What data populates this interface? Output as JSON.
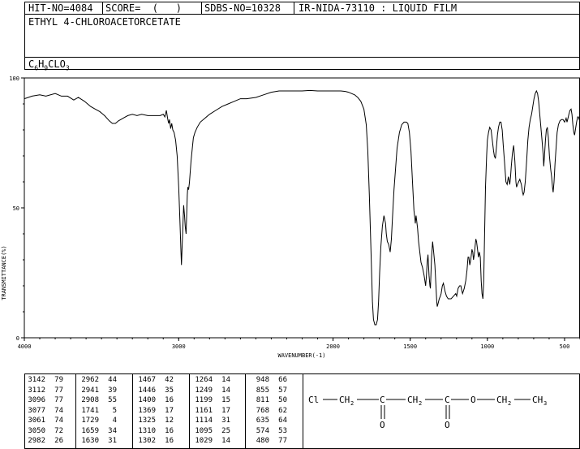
{
  "header": {
    "hit_no": "HIT-NO=4084",
    "score": "SCORE=  (   )",
    "sdbs_no": "SDBS-NO=10328",
    "ir_nida": "IR-NIDA-73110 : LIQUID FILM",
    "compound_name": "ETHYL 4-CHLOROACETORCETATE",
    "formula": {
      "c": "C",
      "c_sub": "6",
      "h": "H",
      "h_sub": "9",
      "rest": "CLO",
      "o_sub": "3"
    }
  },
  "chart_data": {
    "type": "line",
    "xlabel": "WAVENUMBER(-1)",
    "ylabel": "TRANSMITTANCE(%)",
    "xlim": [
      4000,
      400
    ],
    "ylim": [
      0,
      100
    ],
    "x_ticks": [
      4000,
      3000,
      2000,
      1500,
      1000,
      500
    ],
    "y_ticks": [
      0,
      50,
      100
    ],
    "series": [
      {
        "points": [
          [
            4000,
            92
          ],
          [
            3950,
            93
          ],
          [
            3900,
            93.5
          ],
          [
            3860,
            93
          ],
          [
            3800,
            94
          ],
          [
            3760,
            93
          ],
          [
            3720,
            93
          ],
          [
            3680,
            91.5
          ],
          [
            3650,
            92.5
          ],
          [
            3610,
            91
          ],
          [
            3570,
            89
          ],
          [
            3540,
            88
          ],
          [
            3510,
            87
          ],
          [
            3480,
            85.5
          ],
          [
            3450,
            83.5
          ],
          [
            3430,
            82.5
          ],
          [
            3410,
            82.5
          ],
          [
            3390,
            83.5
          ],
          [
            3360,
            84.5
          ],
          [
            3330,
            85.5
          ],
          [
            3300,
            86
          ],
          [
            3270,
            85.5
          ],
          [
            3240,
            86
          ],
          [
            3200,
            85.5
          ],
          [
            3160,
            85.5
          ],
          [
            3120,
            85.5
          ],
          [
            3100,
            86
          ],
          [
            3090,
            85
          ],
          [
            3080,
            87.5
          ],
          [
            3072,
            84.5
          ],
          [
            3065,
            82.5
          ],
          [
            3060,
            84
          ],
          [
            3052,
            80.5
          ],
          [
            3045,
            82.5
          ],
          [
            3038,
            80
          ],
          [
            3030,
            79
          ],
          [
            3020,
            76
          ],
          [
            3010,
            70
          ],
          [
            3000,
            58
          ],
          [
            2992,
            45
          ],
          [
            2985,
            33
          ],
          [
            2982,
            28
          ],
          [
            2978,
            35
          ],
          [
            2972,
            44
          ],
          [
            2968,
            51
          ],
          [
            2962,
            47
          ],
          [
            2958,
            43
          ],
          [
            2952,
            40
          ],
          [
            2948,
            48
          ],
          [
            2944,
            55
          ],
          [
            2941,
            58
          ],
          [
            2936,
            57
          ],
          [
            2930,
            60
          ],
          [
            2920,
            68
          ],
          [
            2910,
            74
          ],
          [
            2905,
            77
          ],
          [
            2895,
            79
          ],
          [
            2880,
            81
          ],
          [
            2860,
            83
          ],
          [
            2830,
            84.5
          ],
          [
            2800,
            86
          ],
          [
            2760,
            87.5
          ],
          [
            2720,
            89
          ],
          [
            2680,
            90
          ],
          [
            2640,
            91
          ],
          [
            2600,
            92
          ],
          [
            2560,
            92
          ],
          [
            2500,
            92.5
          ],
          [
            2450,
            93.5
          ],
          [
            2400,
            94.5
          ],
          [
            2350,
            95
          ],
          [
            2300,
            95
          ],
          [
            2250,
            95
          ],
          [
            2200,
            95
          ],
          [
            2150,
            95.2
          ],
          [
            2100,
            95
          ],
          [
            2050,
            95
          ],
          [
            2000,
            95
          ],
          [
            1950,
            95
          ],
          [
            1920,
            94.8
          ],
          [
            1900,
            94.5
          ],
          [
            1880,
            94
          ],
          [
            1860,
            93.5
          ],
          [
            1840,
            92.5
          ],
          [
            1820,
            91
          ],
          [
            1800,
            88
          ],
          [
            1785,
            82
          ],
          [
            1775,
            72
          ],
          [
            1765,
            55
          ],
          [
            1755,
            35
          ],
          [
            1745,
            14
          ],
          [
            1738,
            7
          ],
          [
            1729,
            5
          ],
          [
            1720,
            5
          ],
          [
            1712,
            7
          ],
          [
            1705,
            14
          ],
          [
            1698,
            25
          ],
          [
            1690,
            35
          ],
          [
            1680,
            43
          ],
          [
            1670,
            47
          ],
          [
            1660,
            44
          ],
          [
            1655,
            40
          ],
          [
            1648,
            37
          ],
          [
            1640,
            36
          ],
          [
            1630,
            33
          ],
          [
            1622,
            38
          ],
          [
            1615,
            46
          ],
          [
            1605,
            57
          ],
          [
            1595,
            65
          ],
          [
            1585,
            73
          ],
          [
            1570,
            79
          ],
          [
            1555,
            82
          ],
          [
            1540,
            83
          ],
          [
            1525,
            83
          ],
          [
            1515,
            82.5
          ],
          [
            1505,
            79
          ],
          [
            1495,
            72
          ],
          [
            1485,
            60
          ],
          [
            1476,
            49
          ],
          [
            1470,
            46
          ],
          [
            1467,
            44
          ],
          [
            1462,
            47
          ],
          [
            1458,
            45
          ],
          [
            1452,
            42
          ],
          [
            1446,
            37
          ],
          [
            1438,
            33
          ],
          [
            1430,
            29
          ],
          [
            1420,
            27
          ],
          [
            1410,
            24
          ],
          [
            1400,
            20
          ],
          [
            1395,
            24
          ],
          [
            1390,
            29
          ],
          [
            1385,
            32
          ],
          [
            1378,
            24
          ],
          [
            1372,
            20
          ],
          [
            1369,
            19
          ],
          [
            1362,
            31
          ],
          [
            1355,
            37
          ],
          [
            1348,
            33
          ],
          [
            1340,
            28
          ],
          [
            1335,
            22
          ],
          [
            1328,
            14
          ],
          [
            1325,
            12
          ],
          [
            1320,
            13
          ],
          [
            1312,
            15
          ],
          [
            1305,
            16
          ],
          [
            1300,
            17
          ],
          [
            1292,
            20
          ],
          [
            1285,
            21
          ],
          [
            1275,
            18
          ],
          [
            1265,
            16
          ],
          [
            1254,
            15
          ],
          [
            1249,
            15
          ],
          [
            1235,
            15
          ],
          [
            1220,
            16
          ],
          [
            1205,
            17
          ],
          [
            1199,
            16
          ],
          [
            1190,
            19
          ],
          [
            1180,
            20
          ],
          [
            1172,
            20
          ],
          [
            1165,
            18
          ],
          [
            1161,
            17
          ],
          [
            1150,
            19
          ],
          [
            1140,
            22
          ],
          [
            1132,
            26
          ],
          [
            1125,
            31
          ],
          [
            1120,
            31
          ],
          [
            1114,
            28
          ],
          [
            1108,
            30
          ],
          [
            1100,
            34
          ],
          [
            1095,
            33
          ],
          [
            1090,
            30
          ],
          [
            1085,
            32
          ],
          [
            1080,
            35
          ],
          [
            1075,
            38
          ],
          [
            1070,
            37
          ],
          [
            1064,
            34
          ],
          [
            1058,
            31
          ],
          [
            1052,
            33
          ],
          [
            1046,
            31
          ],
          [
            1040,
            22
          ],
          [
            1035,
            17
          ],
          [
            1029,
            15
          ],
          [
            1024,
            22
          ],
          [
            1018,
            40
          ],
          [
            1012,
            58
          ],
          [
            1005,
            70
          ],
          [
            1000,
            76
          ],
          [
            993,
            79
          ],
          [
            985,
            81
          ],
          [
            976,
            80
          ],
          [
            968,
            76
          ],
          [
            960,
            72
          ],
          [
            955,
            70
          ],
          [
            948,
            69
          ],
          [
            942,
            73
          ],
          [
            935,
            78
          ],
          [
            928,
            81
          ],
          [
            920,
            83
          ],
          [
            912,
            83
          ],
          [
            904,
            80
          ],
          [
            897,
            74
          ],
          [
            888,
            67
          ],
          [
            880,
            60
          ],
          [
            872,
            59
          ],
          [
            864,
            62
          ],
          [
            858,
            60
          ],
          [
            855,
            59
          ],
          [
            850,
            62
          ],
          [
            845,
            66
          ],
          [
            838,
            71
          ],
          [
            830,
            74
          ],
          [
            822,
            68
          ],
          [
            815,
            60
          ],
          [
            811,
            58
          ],
          [
            805,
            59
          ],
          [
            798,
            60
          ],
          [
            790,
            61
          ],
          [
            780,
            59
          ],
          [
            772,
            56
          ],
          [
            768,
            55
          ],
          [
            762,
            56
          ],
          [
            755,
            60
          ],
          [
            746,
            68
          ],
          [
            738,
            76
          ],
          [
            730,
            81
          ],
          [
            722,
            84
          ],
          [
            714,
            86
          ],
          [
            706,
            89
          ],
          [
            698,
            92
          ],
          [
            690,
            94
          ],
          [
            682,
            95
          ],
          [
            675,
            94
          ],
          [
            668,
            91
          ],
          [
            662,
            87
          ],
          [
            655,
            82
          ],
          [
            646,
            76
          ],
          [
            638,
            70
          ],
          [
            635,
            66
          ],
          [
            630,
            70
          ],
          [
            624,
            76
          ],
          [
            618,
            80
          ],
          [
            612,
            81
          ],
          [
            605,
            77
          ],
          [
            598,
            70
          ],
          [
            590,
            65
          ],
          [
            584,
            62
          ],
          [
            578,
            58
          ],
          [
            574,
            56
          ],
          [
            568,
            60
          ],
          [
            562,
            67
          ],
          [
            555,
            73
          ],
          [
            548,
            79
          ],
          [
            540,
            82
          ],
          [
            530,
            83.5
          ],
          [
            520,
            84
          ],
          [
            510,
            84
          ],
          [
            500,
            83
          ],
          [
            490,
            84.5
          ],
          [
            484,
            83
          ],
          [
            480,
            84
          ],
          [
            472,
            86
          ],
          [
            465,
            87.5
          ],
          [
            458,
            88
          ],
          [
            452,
            86
          ],
          [
            446,
            82
          ],
          [
            440,
            79
          ],
          [
            435,
            78
          ],
          [
            430,
            80
          ],
          [
            422,
            83
          ],
          [
            415,
            85
          ],
          [
            410,
            85
          ],
          [
            405,
            84
          ],
          [
            400,
            84
          ]
        ]
      }
    ]
  },
  "peaks": [
    [
      [
        "3142",
        "79"
      ],
      [
        "3112",
        "77"
      ],
      [
        "3096",
        "77"
      ],
      [
        "3077",
        "74"
      ],
      [
        "3061",
        "74"
      ],
      [
        "3050",
        "72"
      ],
      [
        "2982",
        "26"
      ]
    ],
    [
      [
        "2962",
        "44"
      ],
      [
        "2941",
        "39"
      ],
      [
        "2908",
        "55"
      ],
      [
        "1741",
        "5"
      ],
      [
        "1729",
        "4"
      ],
      [
        "1659",
        "34"
      ],
      [
        "1630",
        "31"
      ]
    ],
    [
      [
        "1467",
        "42"
      ],
      [
        "1446",
        "35"
      ],
      [
        "1400",
        "16"
      ],
      [
        "1369",
        "17"
      ],
      [
        "1325",
        "12"
      ],
      [
        "1310",
        "16"
      ],
      [
        "1302",
        "16"
      ]
    ],
    [
      [
        "1264",
        "14"
      ],
      [
        "1249",
        "14"
      ],
      [
        "1199",
        "15"
      ],
      [
        "1161",
        "17"
      ],
      [
        "1114",
        "31"
      ],
      [
        "1095",
        "25"
      ],
      [
        "1029",
        "14"
      ]
    ],
    [
      [
        "948",
        "66"
      ],
      [
        "855",
        "57"
      ],
      [
        "811",
        "50"
      ],
      [
        "768",
        "62"
      ],
      [
        "635",
        "64"
      ],
      [
        "574",
        "53"
      ],
      [
        "480",
        "77"
      ]
    ]
  ],
  "structure": {
    "atoms": [
      "Cl",
      "CH",
      "2",
      "C",
      "CH",
      "2",
      "C",
      "O",
      "CH",
      "2",
      "CH",
      "3",
      "O",
      "O"
    ]
  }
}
